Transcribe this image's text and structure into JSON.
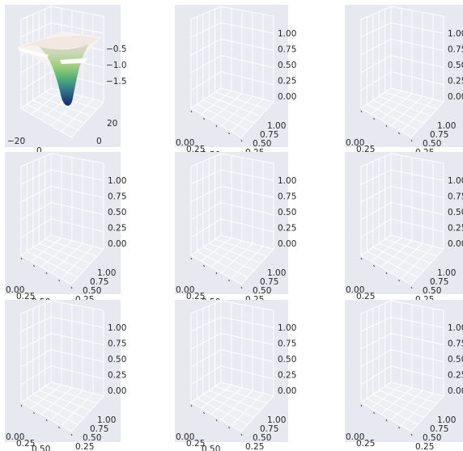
{
  "figure": {
    "rows": 3,
    "cols": 3,
    "background": "#ffffff",
    "pane_color": "#e8e8f0",
    "grid_color": "#ffffff",
    "surface_colormap": "gist_earth"
  },
  "chart_data": [
    {
      "type": "surface3d",
      "title": "",
      "xlabel": "",
      "ylabel": "",
      "zlabel": "",
      "surface_function": "-exp(-(x^2+y^2)/400) * 1.9",
      "x_ticks": [
        "−20",
        "0"
      ],
      "y_ticks": [
        "20",
        "0"
      ],
      "z_ticks": [
        "−0.5",
        "−1.0",
        "−1.5"
      ],
      "xlim": [
        -25,
        25
      ],
      "ylim": [
        -25,
        25
      ],
      "zlim": [
        -2.0,
        0.0
      ],
      "grid": true
    },
    {
      "type": "empty3d",
      "x_ticks": [
        "0.00",
        "0.25",
        "0.50"
      ],
      "y_ticks": [
        "1.00",
        "0.75",
        "0.50",
        "0.25"
      ],
      "z_ticks": [
        "1.00",
        "0.75",
        "0.50",
        "0.25",
        "0.00"
      ],
      "grid": true
    },
    {
      "type": "empty3d",
      "x_ticks": [
        "0.00",
        "0.25"
      ],
      "y_ticks": [
        "1.00",
        "0.75",
        "0.50",
        "0.25"
      ],
      "z_ticks": [
        "1.00",
        "0.75",
        "0.50",
        "0.25",
        "0.00"
      ],
      "grid": true
    },
    {
      "type": "empty3d",
      "x_ticks": [
        "0.00",
        "0.25",
        "0.50"
      ],
      "y_ticks": [
        "1.00",
        "0.75",
        "0.50",
        "0.25"
      ],
      "z_ticks": [
        "1.00",
        "0.75",
        "0.50",
        "0.25",
        "0.00"
      ],
      "grid": true
    },
    {
      "type": "empty3d",
      "x_ticks": [
        "0.00",
        "0.25",
        "0.50"
      ],
      "y_ticks": [
        "1.00",
        "0.75",
        "0.50",
        "0.25"
      ],
      "z_ticks": [
        "1.00",
        "0.75",
        "0.50",
        "0.25",
        "0.00"
      ],
      "grid": true
    },
    {
      "type": "empty3d",
      "x_ticks": [
        "0.00",
        "0.25"
      ],
      "y_ticks": [
        "1.00",
        "0.75",
        "0.50",
        "0.25"
      ],
      "z_ticks": [
        "1.00",
        "0.75",
        "0.50",
        "0.25",
        "0.00"
      ],
      "grid": true
    },
    {
      "type": "empty3d",
      "x_ticks": [
        "0.00",
        "0.25",
        "0.50"
      ],
      "y_ticks": [
        "1.00",
        "0.75",
        "0.50",
        "0.25"
      ],
      "z_ticks": [
        "1.00",
        "0.75",
        "0.50",
        "0.25",
        "0.00"
      ],
      "grid": true
    },
    {
      "type": "empty3d",
      "x_ticks": [
        "0.00",
        "0.25",
        "0.50"
      ],
      "y_ticks": [
        "1.00",
        "0.75",
        "0.50",
        "0.25"
      ],
      "z_ticks": [
        "1.00",
        "0.75",
        "0.50",
        "0.25",
        "0.00"
      ],
      "grid": true
    },
    {
      "type": "empty3d",
      "x_ticks": [
        "0.00",
        "0.25"
      ],
      "y_ticks": [
        "1.00",
        "0.75",
        "0.50",
        "0.25"
      ],
      "z_ticks": [
        "1.00",
        "0.75",
        "0.50",
        "0.25",
        "0.00"
      ],
      "grid": true
    }
  ]
}
